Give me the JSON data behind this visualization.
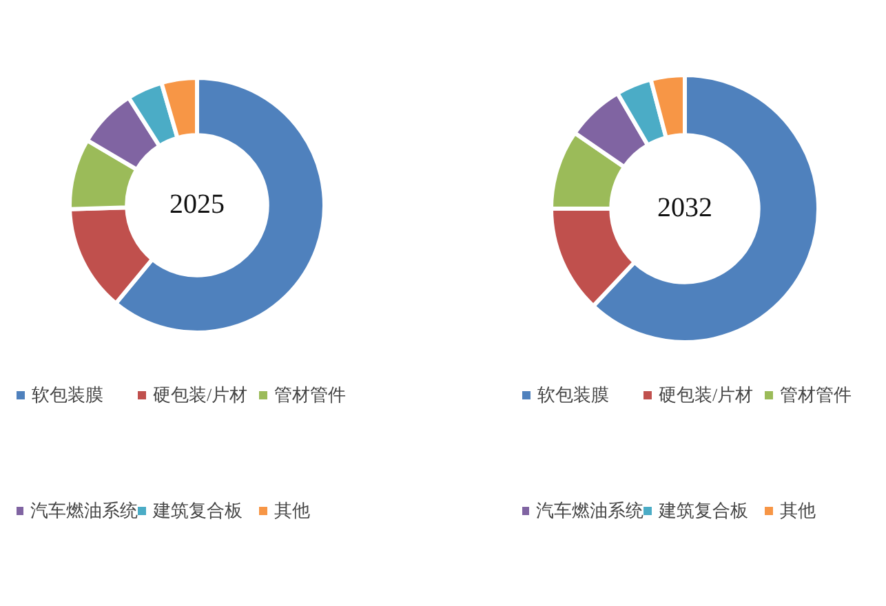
{
  "chart_data": [
    {
      "type": "donut",
      "title": "2025",
      "categories": [
        "软包装膜",
        "硬包装/片材",
        "管材管件",
        "汽车燃油系统",
        "建筑复合板",
        "其他"
      ],
      "values": [
        61,
        13.5,
        9,
        7.5,
        4.5,
        4.5
      ],
      "colors": [
        "#4f81bd",
        "#c0504d",
        "#9bbb59",
        "#8064a2",
        "#4bacc6",
        "#f79646"
      ],
      "legend": "bottom"
    },
    {
      "type": "donut",
      "title": "2032",
      "categories": [
        "软包装膜",
        "硬包装/片材",
        "管材管件",
        "汽车燃油系统",
        "建筑复合板",
        "其他"
      ],
      "values": [
        62,
        13,
        9.6,
        7,
        4.3,
        4.1
      ],
      "colors": [
        "#4f81bd",
        "#c0504d",
        "#9bbb59",
        "#8064a2",
        "#4bacc6",
        "#f79646"
      ],
      "legend": "bottom"
    }
  ]
}
